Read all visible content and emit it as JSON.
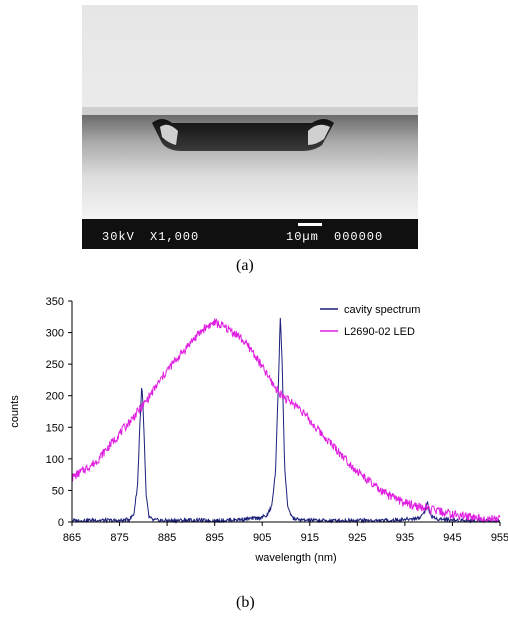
{
  "figure_a": {
    "caption": "(a)",
    "sem_bar": {
      "voltage": "30kV",
      "magnification": "X1,000",
      "scale": "10µm",
      "image_number": "000000"
    }
  },
  "figure_b": {
    "caption": "(b)"
  },
  "chart_data": {
    "type": "line",
    "title": "",
    "xlabel": "wavelength (nm)",
    "ylabel": "counts",
    "xlim": [
      865,
      955
    ],
    "ylim": [
      0,
      350
    ],
    "xticks": [
      "865",
      "875",
      "885",
      "895",
      "905",
      "915",
      "925",
      "935",
      "945",
      "955"
    ],
    "yticks": [
      "0",
      "50",
      "100",
      "150",
      "200",
      "250",
      "300",
      "350"
    ],
    "grid": false,
    "legend_position": "top-right",
    "series": [
      {
        "name": "cavity spectrum",
        "color": "#1a1f7a",
        "points": [
          [
            865,
            2
          ],
          [
            870,
            3
          ],
          [
            875,
            2
          ],
          [
            877,
            4
          ],
          [
            878,
            12
          ],
          [
            878.8,
            60
          ],
          [
            879.3,
            160
          ],
          [
            879.7,
            220
          ],
          [
            880.1,
            150
          ],
          [
            880.6,
            40
          ],
          [
            881.2,
            8
          ],
          [
            882,
            3
          ],
          [
            885,
            2
          ],
          [
            890,
            3
          ],
          [
            895,
            2
          ],
          [
            900,
            4
          ],
          [
            904,
            6
          ],
          [
            906,
            10
          ],
          [
            907,
            25
          ],
          [
            907.8,
            80
          ],
          [
            908.4,
            220
          ],
          [
            908.8,
            326
          ],
          [
            909.2,
            250
          ],
          [
            909.7,
            90
          ],
          [
            910.4,
            20
          ],
          [
            911.5,
            6
          ],
          [
            913,
            3
          ],
          [
            920,
            2
          ],
          [
            925,
            3
          ],
          [
            930,
            2
          ],
          [
            935,
            4
          ],
          [
            938,
            6
          ],
          [
            939.3,
            18
          ],
          [
            939.7,
            33
          ],
          [
            940.2,
            14
          ],
          [
            941,
            6
          ],
          [
            945,
            3
          ],
          [
            950,
            2
          ],
          [
            955,
            2
          ]
        ]
      },
      {
        "name": "L2690-02 LED",
        "color": "#e020e0",
        "points": [
          [
            865,
            70
          ],
          [
            870,
            95
          ],
          [
            875,
            140
          ],
          [
            880,
            185
          ],
          [
            885,
            240
          ],
          [
            890,
            285
          ],
          [
            893,
            308
          ],
          [
            895,
            316
          ],
          [
            898,
            305
          ],
          [
            900,
            295
          ],
          [
            903,
            270
          ],
          [
            905,
            245
          ],
          [
            908,
            210
          ],
          [
            910,
            195
          ],
          [
            913,
            180
          ],
          [
            915,
            160
          ],
          [
            920,
            120
          ],
          [
            925,
            80
          ],
          [
            930,
            48
          ],
          [
            935,
            30
          ],
          [
            940,
            20
          ],
          [
            945,
            12
          ],
          [
            950,
            7
          ],
          [
            955,
            4
          ]
        ]
      }
    ]
  }
}
